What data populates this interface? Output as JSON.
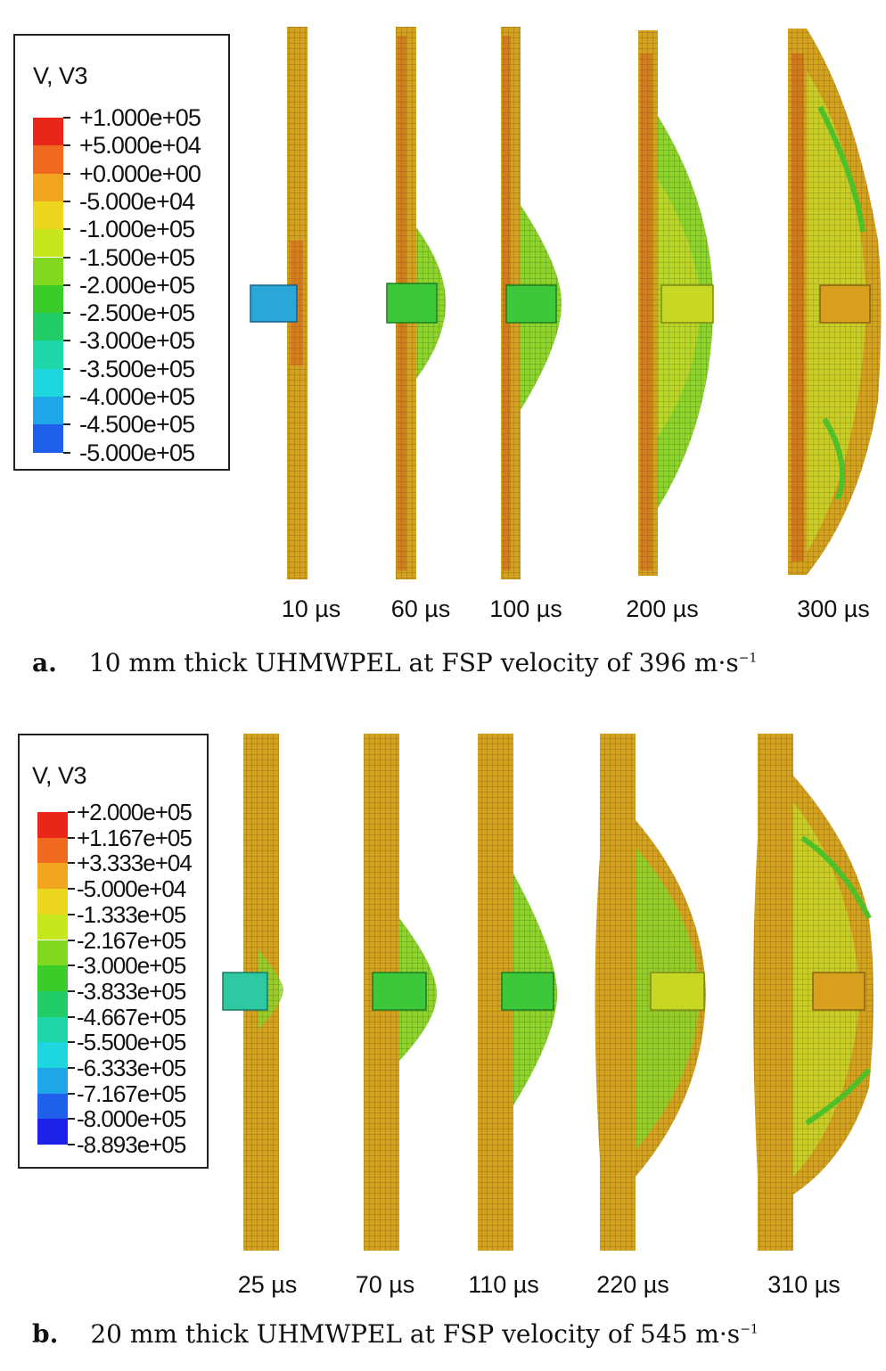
{
  "panels": [
    {
      "id": "a",
      "legend": {
        "title": "V, V3",
        "labels": [
          "+1.000e+05",
          "+5.000e+04",
          "+0.000e+00",
          "-5.000e+04",
          "-1.000e+05",
          "-1.500e+05",
          "-2.000e+05",
          "-2.500e+05",
          "-3.000e+05",
          "-3.500e+05",
          "-4.000e+05",
          "-4.500e+05",
          "-5.000e+05"
        ],
        "colors": [
          "#e8261a",
          "#ef6a1e",
          "#f2a51e",
          "#ecd61e",
          "#c6e61e",
          "#82d81e",
          "#3ccc2a",
          "#22cc66",
          "#1ed6a8",
          "#1ed6de",
          "#1ea6e8",
          "#1e60ea",
          "#1e22e8"
        ]
      },
      "time_labels": [
        "10 µs",
        "60 µs",
        "100 µs",
        "200 µs",
        "300 µs"
      ],
      "caption": {
        "letter": "a.",
        "text": "10 mm thick UHMWPEL at FSP velocity of 396 m·s",
        "sup": "−1"
      }
    },
    {
      "id": "b",
      "legend": {
        "title": "V, V3",
        "labels": [
          "+2.000e+05",
          "+1.167e+05",
          "+3.333e+04",
          "-5.000e+04",
          "-1.333e+05",
          "-2.167e+05",
          "-3.000e+05",
          "-3.833e+05",
          "-4.667e+05",
          "-5.500e+05",
          "-6.333e+05",
          "-7.167e+05",
          "-8.000e+05",
          "-8.893e+05"
        ],
        "colors": [
          "#e8261a",
          "#ef6a1e",
          "#f2a51e",
          "#ecd61e",
          "#c6e61e",
          "#82d81e",
          "#3ccc2a",
          "#22cc66",
          "#1ed6a8",
          "#1ed6de",
          "#1ea6e8",
          "#1e60ea",
          "#1e22e8",
          "#3a3a3a"
        ]
      },
      "time_labels": [
        "25 µs",
        "70 µs",
        "110 µs",
        "220 µs",
        "310 µs"
      ],
      "caption": {
        "letter": "b.",
        "text": "20 mm thick UHMWPEL at FSP velocity of 545 m·s",
        "sup": "−1"
      }
    }
  ]
}
